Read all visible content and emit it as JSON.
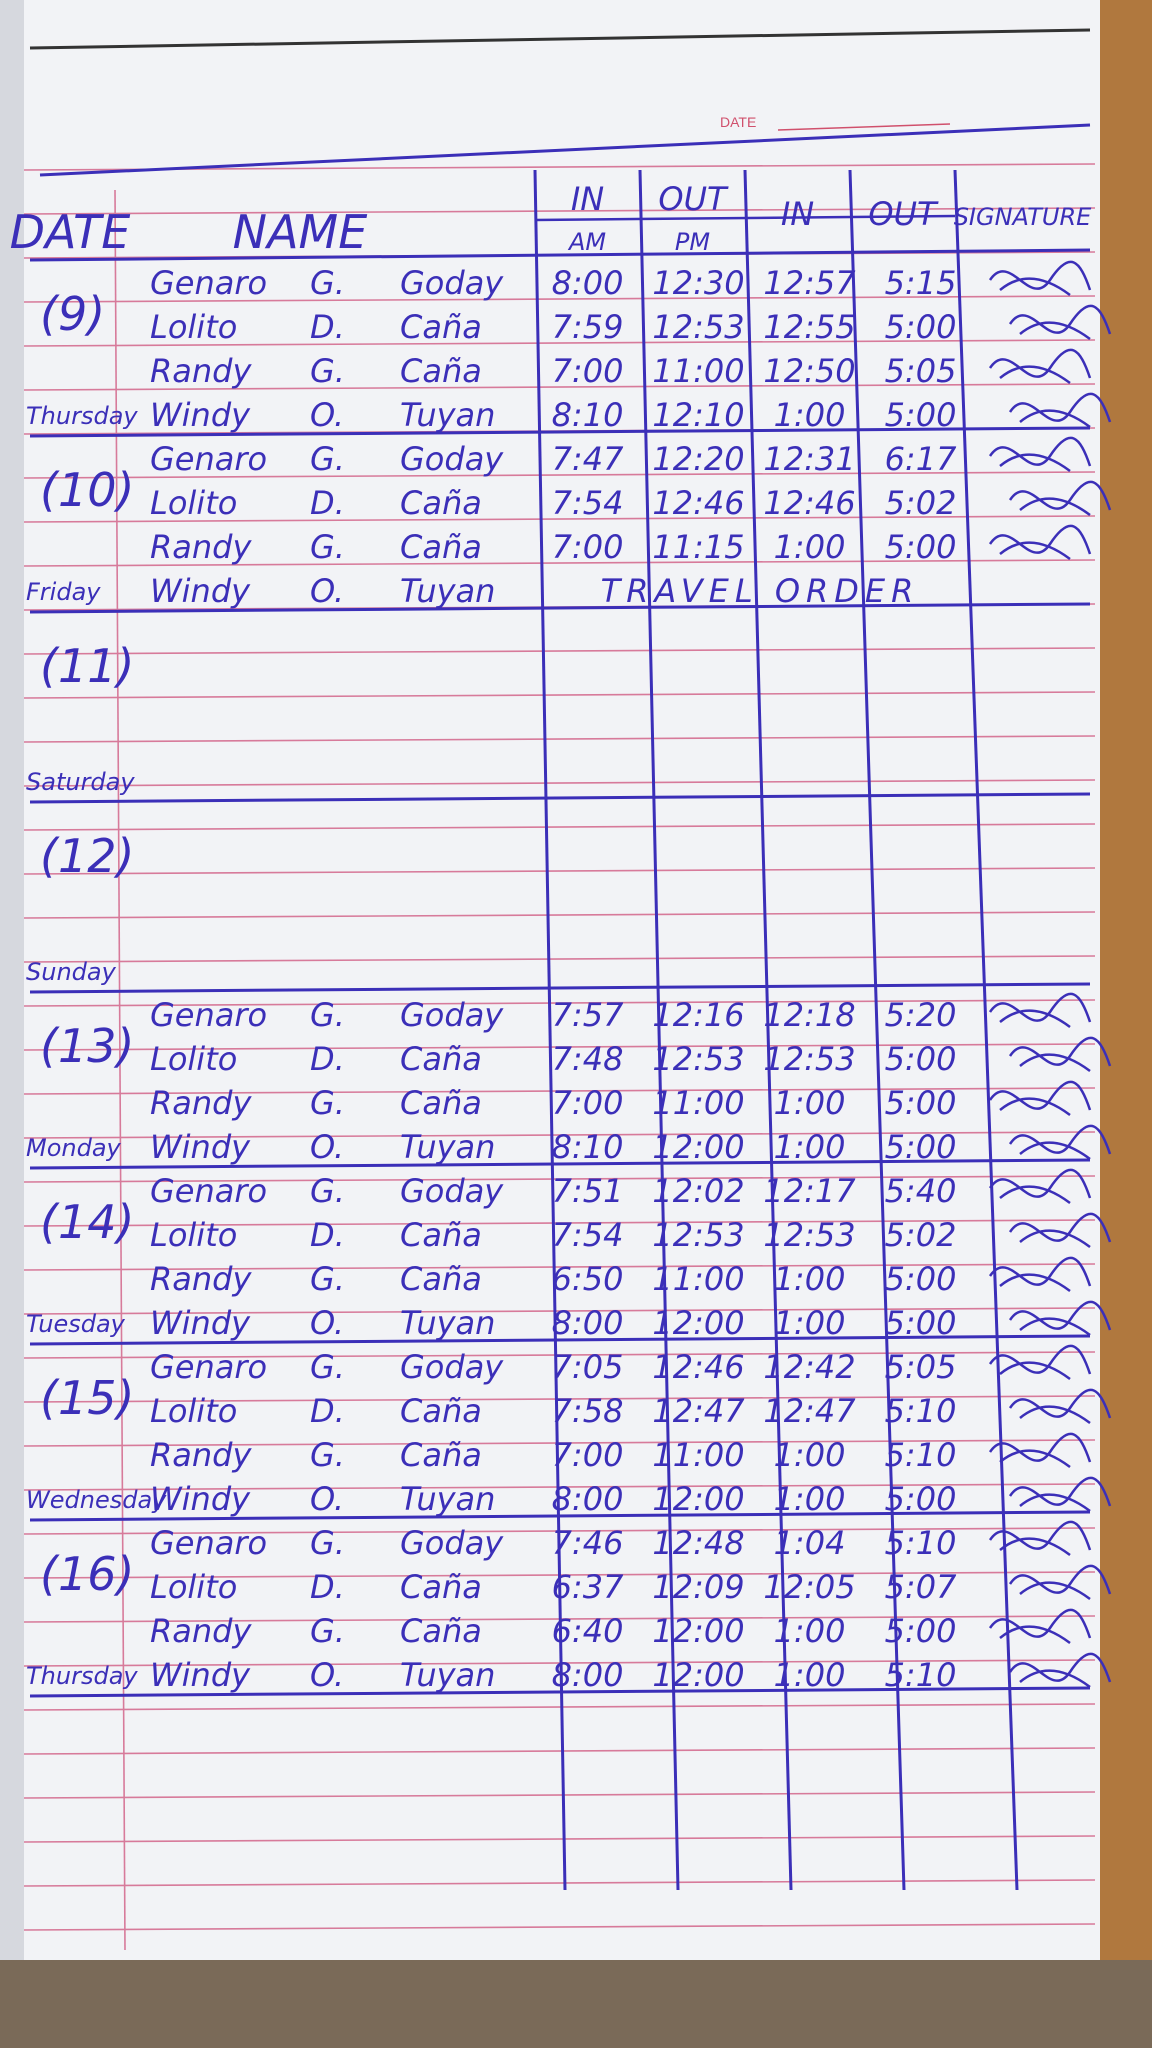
{
  "header": {
    "date_label": "DATE"
  },
  "table": {
    "columns": [
      {
        "label": "DATE"
      },
      {
        "label": "NAME"
      },
      {
        "label": "IN",
        "sub": "AM"
      },
      {
        "label": "OUT",
        "sub": "PM"
      },
      {
        "label": "IN"
      },
      {
        "label": "OUT"
      },
      {
        "label": "SIGNATURE"
      }
    ],
    "days": [
      {
        "date": "(9)",
        "weekday": "Thursday",
        "entries": [
          {
            "first": "Genaro",
            "initial": "G.",
            "last": "Goday",
            "times": [
              "8:00",
              "12:30",
              "12:57",
              "5:15"
            ]
          },
          {
            "first": "Lolito",
            "initial": "D.",
            "last": "Caña",
            "times": [
              "7:59",
              "12:53",
              "12:55",
              "5:00"
            ]
          },
          {
            "first": "Randy",
            "initial": "G.",
            "last": "Caña",
            "times": [
              "7:00",
              "11:00",
              "12:50",
              "5:05"
            ]
          },
          {
            "first": "Windy",
            "initial": "O.",
            "last": "Tuyan",
            "times": [
              "8:10",
              "12:10",
              "1:00",
              "5:00"
            ]
          }
        ]
      },
      {
        "date": "(10)",
        "weekday": "Friday",
        "entries": [
          {
            "first": "Genaro",
            "initial": "G.",
            "last": "Goday",
            "times": [
              "7:47",
              "12:20",
              "12:31",
              "6:17"
            ]
          },
          {
            "first": "Lolito",
            "initial": "D.",
            "last": "Caña",
            "times": [
              "7:54",
              "12:46",
              "12:46",
              "5:02"
            ]
          },
          {
            "first": "Randy",
            "initial": "G.",
            "last": "Caña",
            "times": [
              "7:00",
              "11:15",
              "1:00",
              "5:00"
            ]
          },
          {
            "first": "Windy",
            "initial": "O.",
            "last": "Tuyan",
            "note": "TRAVEL ORDER"
          }
        ]
      },
      {
        "date": "(11)",
        "weekday": "Saturday",
        "entries": []
      },
      {
        "date": "(12)",
        "weekday": "Sunday",
        "entries": []
      },
      {
        "date": "(13)",
        "weekday": "Monday",
        "entries": [
          {
            "first": "Genaro",
            "initial": "G.",
            "last": "Goday",
            "times": [
              "7:57",
              "12:16",
              "12:18",
              "5:20"
            ]
          },
          {
            "first": "Lolito",
            "initial": "D.",
            "last": "Caña",
            "times": [
              "7:48",
              "12:53",
              "12:53",
              "5:00"
            ]
          },
          {
            "first": "Randy",
            "initial": "G.",
            "last": "Caña",
            "times": [
              "7:00",
              "11:00",
              "1:00",
              "5:00"
            ]
          },
          {
            "first": "Windy",
            "initial": "O.",
            "last": "Tuyan",
            "times": [
              "8:10",
              "12:00",
              "1:00",
              "5:00"
            ]
          }
        ]
      },
      {
        "date": "(14)",
        "weekday": "Tuesday",
        "entries": [
          {
            "first": "Genaro",
            "initial": "G.",
            "last": "Goday",
            "times": [
              "7:51",
              "12:02",
              "12:17",
              "5:40"
            ]
          },
          {
            "first": "Lolito",
            "initial": "D.",
            "last": "Caña",
            "times": [
              "7:54",
              "12:53",
              "12:53",
              "5:02"
            ]
          },
          {
            "first": "Randy",
            "initial": "G.",
            "last": "Caña",
            "times": [
              "6:50",
              "11:00",
              "1:00",
              "5:00"
            ]
          },
          {
            "first": "Windy",
            "initial": "O.",
            "last": "Tuyan",
            "times": [
              "8:00",
              "12:00",
              "1:00",
              "5:00"
            ]
          }
        ]
      },
      {
        "date": "(15)",
        "weekday": "Wednesday",
        "entries": [
          {
            "first": "Genaro",
            "initial": "G.",
            "last": "Goday",
            "times": [
              "7:05",
              "12:46",
              "12:42",
              "5:05"
            ]
          },
          {
            "first": "Lolito",
            "initial": "D.",
            "last": "Caña",
            "times": [
              "7:58",
              "12:47",
              "12:47",
              "5:10"
            ]
          },
          {
            "first": "Randy",
            "initial": "G.",
            "last": "Caña",
            "times": [
              "7:00",
              "11:00",
              "1:00",
              "5:10"
            ]
          },
          {
            "first": "Windy",
            "initial": "O.",
            "last": "Tuyan",
            "times": [
              "8:00",
              "12:00",
              "1:00",
              "5:00"
            ]
          }
        ]
      },
      {
        "date": "(16)",
        "weekday": "Thursday",
        "entries": [
          {
            "first": "Genaro",
            "initial": "G.",
            "last": "Goday",
            "times": [
              "7:46",
              "12:48",
              "1:04",
              "5:10"
            ]
          },
          {
            "first": "Lolito",
            "initial": "D.",
            "last": "Caña",
            "times": [
              "6:37",
              "12:09",
              "12:05",
              "5:07"
            ]
          },
          {
            "first": "Randy",
            "initial": "G.",
            "last": "Caña",
            "times": [
              "6:40",
              "12:00",
              "1:00",
              "5:00"
            ]
          },
          {
            "first": "Windy",
            "initial": "O.",
            "last": "Tuyan",
            "times": [
              "8:00",
              "12:00",
              "1:00",
              "5:10"
            ]
          }
        ]
      }
    ]
  }
}
